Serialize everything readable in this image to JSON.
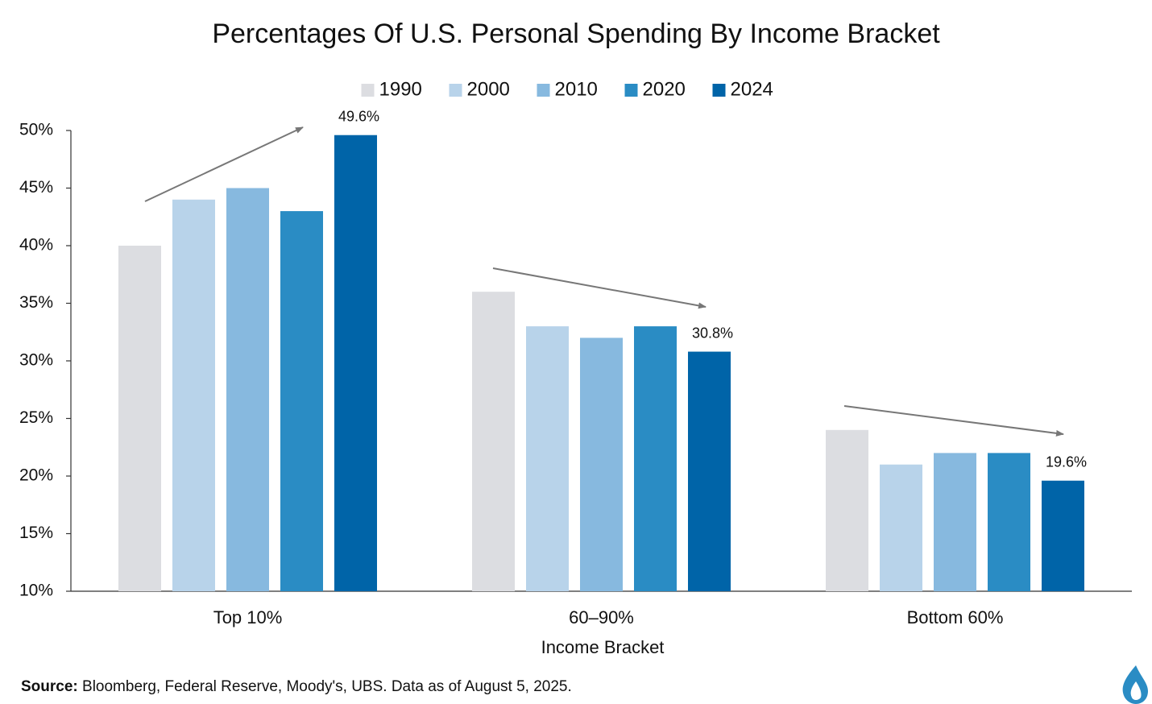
{
  "chart_data": {
    "type": "bar",
    "title": "Percentages Of U.S. Personal Spending By Income Bracket",
    "x_label": "Income Bracket",
    "categories": [
      "Top 10%",
      "60–90%",
      "Bottom 60%"
    ],
    "series": [
      {
        "name": "1990",
        "color": "#dcdde1",
        "values": [
          40,
          36,
          24
        ]
      },
      {
        "name": "2000",
        "color": "#b8d3ea",
        "values": [
          44,
          33,
          21
        ]
      },
      {
        "name": "2010",
        "color": "#87b9df",
        "values": [
          45,
          32,
          22
        ]
      },
      {
        "name": "2020",
        "color": "#2a8cc4",
        "values": [
          43,
          33,
          22
        ]
      },
      {
        "name": "2024",
        "color": "#0064a8",
        "values": [
          49.6,
          30.8,
          19.6
        ],
        "value_labels": [
          "49.6%",
          "30.8%",
          "19.6%"
        ]
      }
    ],
    "ylim": [
      10,
      50
    ],
    "yticks": [
      {
        "value": 10,
        "label": "10%"
      },
      {
        "value": 15,
        "label": "15%"
      },
      {
        "value": 20,
        "label": "20%"
      },
      {
        "value": 25,
        "label": "25%"
      },
      {
        "value": 30,
        "label": "30%"
      },
      {
        "value": 35,
        "label": "35%"
      },
      {
        "value": 40,
        "label": "40%"
      },
      {
        "value": 45,
        "label": "45%"
      },
      {
        "value": 50,
        "label": "50%"
      }
    ],
    "legend": "top",
    "grid": false,
    "source_label": "Source:",
    "source_text": "Bloomberg, Federal Reserve, Moody's, UBS. Data as of August 5, 2025."
  }
}
